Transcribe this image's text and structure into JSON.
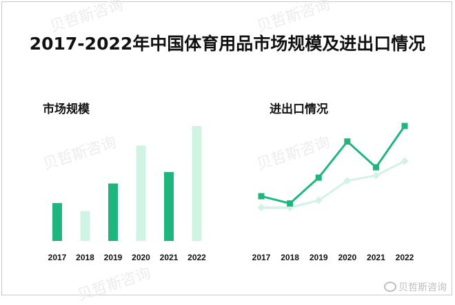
{
  "title": "2017-2022年中国体育用品市场规模及进出口情况",
  "watermark": "贝哲斯咨询",
  "weibo_watermark": "贝哲斯咨询",
  "colors": {
    "dark": "#1db77e",
    "light": "#cff4e3",
    "line_light": "#d2f3e3"
  },
  "chart_data": [
    {
      "type": "bar",
      "title": "市场规模",
      "categories": [
        "2017",
        "2018",
        "2019",
        "2020",
        "2021",
        "2022"
      ],
      "values": [
        33,
        26,
        50,
        83,
        60,
        100
      ],
      "bar_colors": [
        "#1db77e",
        "#cff4e3",
        "#1db77e",
        "#cff4e3",
        "#1db77e",
        "#cff4e3"
      ],
      "xlabel": "",
      "ylabel": "",
      "note": "No value axis shown; values are relative heights (tallest = 100)"
    },
    {
      "type": "line",
      "title": "进出口情况",
      "categories": [
        "2017",
        "2018",
        "2019",
        "2020",
        "2021",
        "2022"
      ],
      "series": [
        {
          "name": "series-dark",
          "color": "#1db77e",
          "marker": "square",
          "values": [
            32,
            25,
            50,
            85,
            60,
            100
          ]
        },
        {
          "name": "series-light",
          "color": "#d2f3e3",
          "marker": "diamond",
          "values": [
            21,
            21,
            28,
            47,
            52,
            66
          ]
        }
      ],
      "xlabel": "",
      "ylabel": "",
      "note": "No value axis shown; values are relative heights (max = 100)"
    }
  ]
}
